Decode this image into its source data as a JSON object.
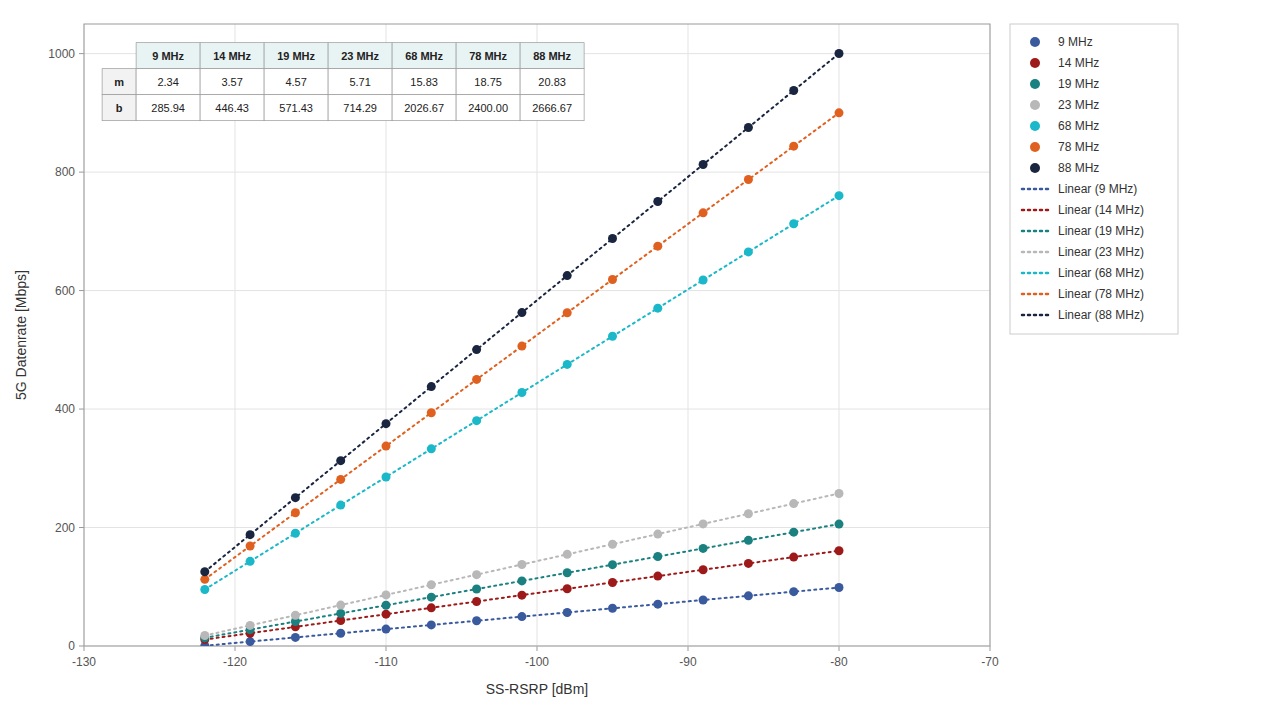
{
  "chart_data": {
    "type": "scatter",
    "x_label": "SS-RSRP [dBm]",
    "y_label": "5G Datenrate [Mbps]",
    "x": [
      -122,
      -119,
      -116,
      -113,
      -110,
      -107,
      -104,
      -101,
      -98,
      -95,
      -92,
      -89,
      -86,
      -83,
      -80
    ],
    "xlim": [
      -130,
      -70
    ],
    "ylim": [
      0.0,
      1050.0
    ],
    "xticks": [
      -130,
      -120,
      -110,
      -100,
      -90,
      -80,
      -70
    ],
    "yticks": [
      0,
      200,
      400,
      600,
      800,
      1000
    ],
    "grid": true,
    "legend": "right",
    "series": [
      {
        "name": "9 MHz",
        "type": "scatter",
        "marker": "circle",
        "color": "#3a5a9e",
        "values": [
          0.46,
          7.48,
          14.5,
          21.52,
          28.54,
          35.56,
          42.58,
          49.6,
          56.62,
          63.64,
          70.66,
          77.68,
          84.7,
          91.72,
          98.74
        ]
      },
      {
        "name": "14 MHz",
        "type": "scatter",
        "marker": "circle",
        "color": "#9e1a1a",
        "values": [
          10.89,
          21.6,
          32.31,
          43.02,
          53.73,
          64.44,
          75.15,
          85.86,
          96.57,
          107.28,
          117.99,
          128.7,
          139.41,
          150.12,
          160.83
        ]
      },
      {
        "name": "19 MHz",
        "type": "scatter",
        "marker": "circle",
        "color": "#1a8080",
        "values": [
          13.89,
          27.6,
          41.31,
          55.02,
          68.73,
          82.44,
          96.15,
          109.86,
          123.57,
          137.28,
          150.99,
          164.7,
          178.41,
          192.12,
          205.83
        ]
      },
      {
        "name": "23 MHz",
        "type": "scatter",
        "marker": "circle",
        "color": "#b8b8b8",
        "values": [
          17.67,
          34.8,
          51.93,
          69.06,
          86.19,
          103.32,
          120.45,
          137.58,
          154.71,
          171.84,
          188.97,
          206.1,
          223.23,
          240.36,
          257.49
        ]
      },
      {
        "name": "68 MHz",
        "type": "scatter",
        "marker": "circle",
        "color": "#1ab8c8",
        "values": [
          95.41,
          142.9,
          190.39,
          237.88,
          285.37,
          332.86,
          380.35,
          427.84,
          475.33,
          522.82,
          570.31,
          617.8,
          665.29,
          712.78,
          760.27
        ]
      },
      {
        "name": "78 MHz",
        "type": "scatter",
        "marker": "circle",
        "color": "#e06020",
        "values": [
          112.5,
          168.75,
          225,
          281.25,
          337.5,
          393.75,
          450,
          506.25,
          562.5,
          618.75,
          675,
          731.25,
          787.5,
          843.75,
          900
        ]
      },
      {
        "name": "88 MHz",
        "type": "scatter",
        "marker": "circle",
        "color": "#1a2540",
        "values": [
          125.41,
          187.9,
          250.39,
          312.88,
          375.37,
          437.86,
          500.35,
          562.84,
          625.33,
          687.82,
          750.31,
          812.8,
          875.29,
          937.78,
          1000.27
        ]
      },
      {
        "name": "Linear (9 MHz)",
        "type": "line",
        "line_style": "dotted",
        "color": "#3a5a9e",
        "values": [
          0.46,
          7.48,
          14.5,
          21.52,
          28.54,
          35.56,
          42.58,
          49.6,
          56.62,
          63.64,
          70.66,
          77.68,
          84.7,
          91.72,
          98.74
        ]
      },
      {
        "name": "Linear (14 MHz)",
        "type": "line",
        "line_style": "dotted",
        "color": "#9e1a1a",
        "values": [
          10.89,
          21.6,
          32.31,
          43.02,
          53.73,
          64.44,
          75.15,
          85.86,
          96.57,
          107.28,
          117.99,
          128.7,
          139.41,
          150.12,
          160.83
        ]
      },
      {
        "name": "Linear (19 MHz)",
        "type": "line",
        "line_style": "dotted",
        "color": "#1a8080",
        "values": [
          13.89,
          27.6,
          41.31,
          55.02,
          68.73,
          82.44,
          96.15,
          109.86,
          123.57,
          137.28,
          150.99,
          164.7,
          178.41,
          192.12,
          205.83
        ]
      },
      {
        "name": "Linear (23 MHz)",
        "type": "line",
        "line_style": "dotted",
        "color": "#b8b8b8",
        "values": [
          17.67,
          34.8,
          51.93,
          69.06,
          86.19,
          103.32,
          120.45,
          137.58,
          154.71,
          171.84,
          188.97,
          206.1,
          223.23,
          240.36,
          257.49
        ]
      },
      {
        "name": "Linear (68 MHz)",
        "type": "line",
        "line_style": "dotted",
        "color": "#1ab8c8",
        "values": [
          95.41,
          142.9,
          190.39,
          237.88,
          285.37,
          332.86,
          380.35,
          427.84,
          475.33,
          522.82,
          570.31,
          617.8,
          665.29,
          712.78,
          760.27
        ]
      },
      {
        "name": "Linear (78 MHz)",
        "type": "line",
        "line_style": "dotted",
        "color": "#e06020",
        "values": [
          112.5,
          168.75,
          225,
          281.25,
          337.5,
          393.75,
          450,
          506.25,
          562.5,
          618.75,
          675,
          731.25,
          787.5,
          843.75,
          900
        ]
      },
      {
        "name": "Linear (88 MHz)",
        "type": "line",
        "line_style": "dotted",
        "color": "#1a2540",
        "values": [
          125.41,
          187.9,
          250.39,
          312.88,
          375.37,
          437.86,
          500.35,
          562.84,
          625.33,
          687.82,
          750.31,
          812.8,
          875.29,
          937.78,
          1000.27
        ]
      }
    ],
    "table": {
      "columns": [
        "9 MHz",
        "14 MHz",
        "19 MHz",
        "23 MHz",
        "68 MHz",
        "78 MHz",
        "88 MHz"
      ],
      "rows": [
        "m",
        "b"
      ],
      "cells": [
        [
          "2.34",
          "3.57",
          "4.57",
          "5.71",
          "15.83",
          "18.75",
          "20.83"
        ],
        [
          "285.94",
          "446.43",
          "571.43",
          "714.29",
          "2026.67",
          "2400.00",
          "2666.67"
        ]
      ]
    }
  }
}
